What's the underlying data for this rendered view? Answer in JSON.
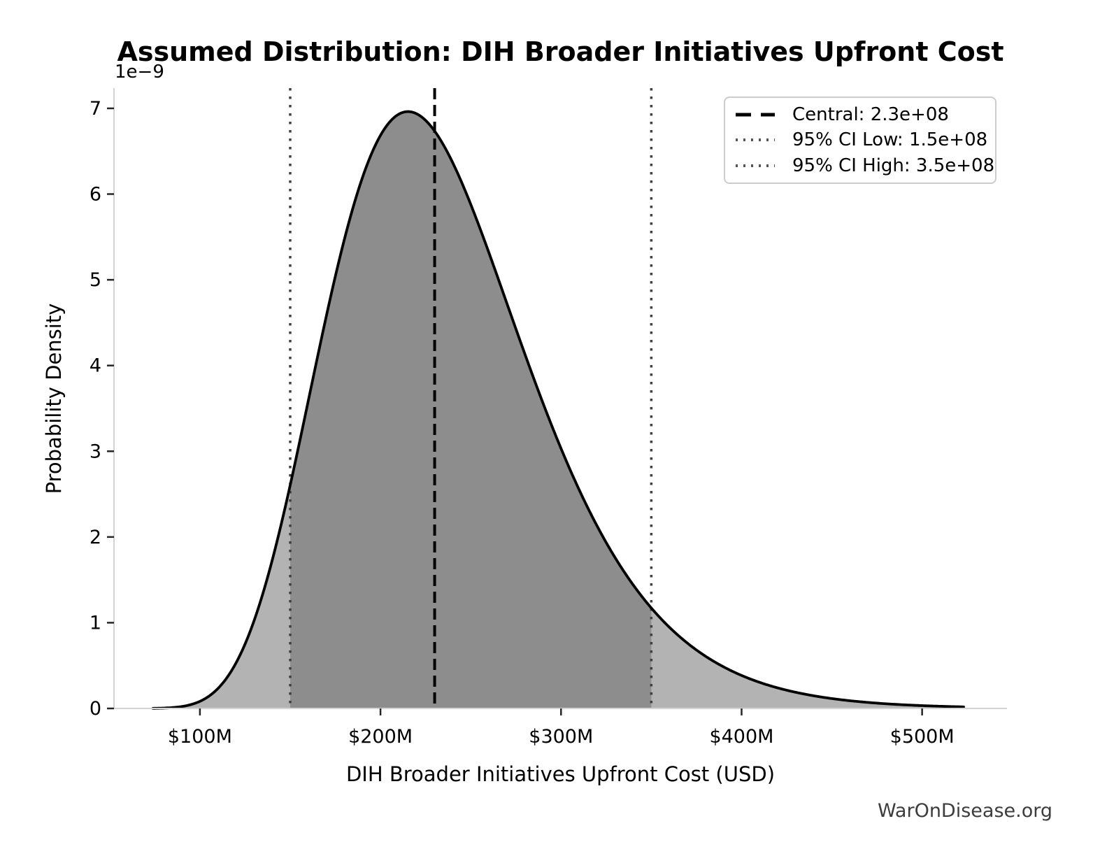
{
  "title": "Assumed Distribution: DIH Broader Initiatives Upfront Cost",
  "watermark": "WarOnDisease.org",
  "chart_data": {
    "type": "area",
    "title": "Assumed Distribution: DIH Broader Initiatives Upfront Cost",
    "xlabel": "DIH Broader Initiatives Upfront Cost (USD)",
    "ylabel": "Probability Density",
    "y_scale_offset_label": "1e−9",
    "grid": false,
    "legend_position": "upper right",
    "xlim": [
      52400000,
      547000000
    ],
    "ylim": [
      0,
      7.236e-09
    ],
    "xticks": [
      {
        "value": 100000000,
        "label": "$100M"
      },
      {
        "value": 200000000,
        "label": "$200M"
      },
      {
        "value": 300000000,
        "label": "$300M"
      },
      {
        "value": 400000000,
        "label": "$400M"
      },
      {
        "value": 500000000,
        "label": "$500M"
      }
    ],
    "yticks": [
      {
        "value": 0,
        "label": "0"
      },
      {
        "value": 1e-09,
        "label": "1"
      },
      {
        "value": 2e-09,
        "label": "2"
      },
      {
        "value": 3e-09,
        "label": "3"
      },
      {
        "value": 4e-09,
        "label": "4"
      },
      {
        "value": 5e-09,
        "label": "5"
      },
      {
        "value": 6e-09,
        "label": "6"
      },
      {
        "value": 7e-09,
        "label": "7"
      }
    ],
    "distribution": {
      "family": "lognormal",
      "central": 230000000,
      "ci_low": 150000000,
      "ci_high": 350000000,
      "mu": 19.25359,
      "sigma": 0.25754,
      "peak_density": 6.96e-09,
      "curve_x_start": 74000000,
      "curve_x_end": 523000000
    },
    "legend": [
      {
        "label": "Central: 2.3e+08",
        "style": "dashed",
        "color": "#000000"
      },
      {
        "label": "95% CI Low: 1.5e+08",
        "style": "dotted",
        "color": "#555555"
      },
      {
        "label": "95% CI High: 3.5e+08",
        "style": "dotted",
        "color": "#555555"
      }
    ],
    "colors": {
      "curve": "#000000",
      "fill_outer": "#b3b3b3",
      "fill_inner": "#8d8d8d",
      "central_line": "#000000",
      "ci_line": "#404040",
      "spine": "#d4d4d4",
      "tick_mark": "#262626",
      "text": "#000000",
      "watermark": "#3d3d3d"
    }
  }
}
